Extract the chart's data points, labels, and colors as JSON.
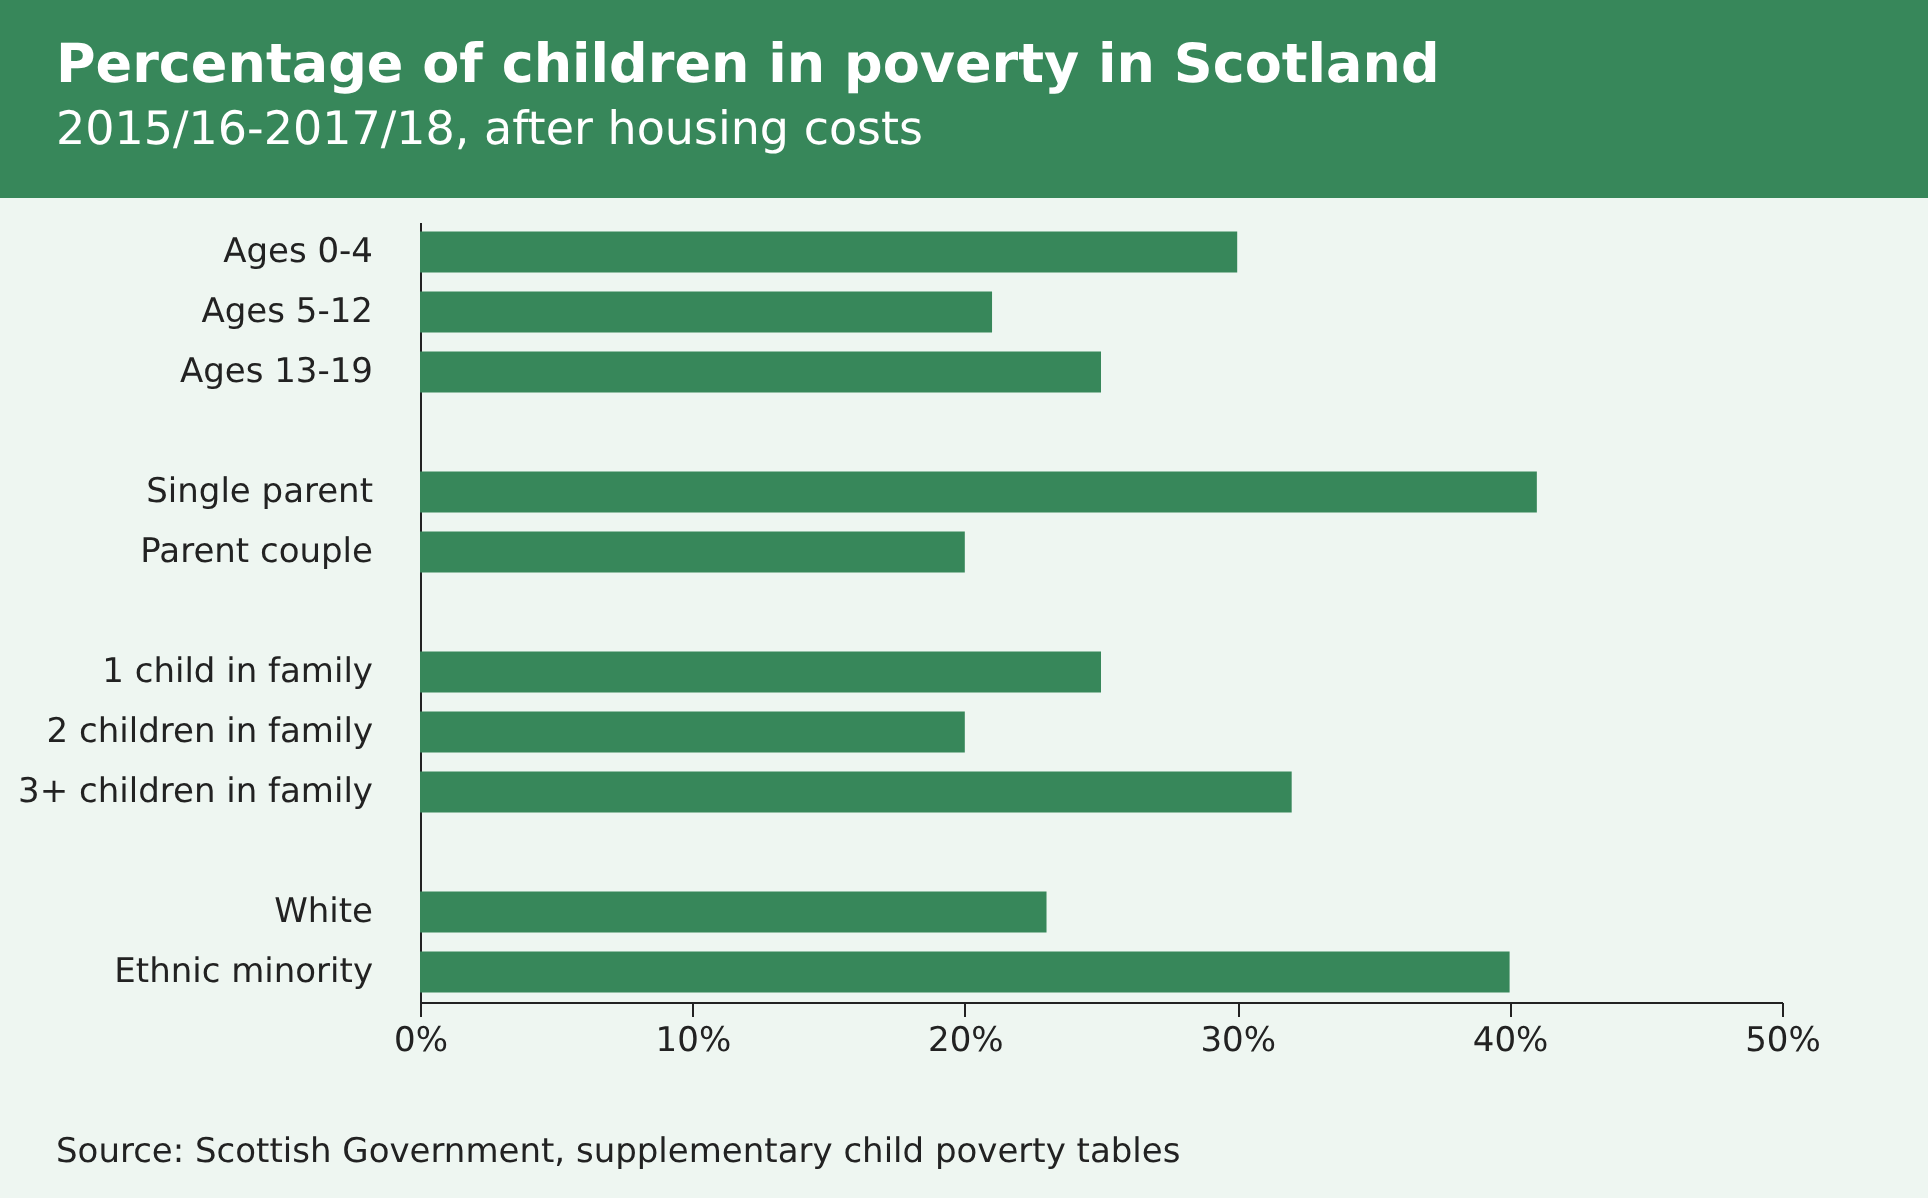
{
  "chart_data": {
    "type": "bar",
    "orientation": "horizontal",
    "title": "Percentage of children in poverty in Scotland",
    "subtitle": "2015/16-2017/18, after housing costs",
    "categories": [
      "Ages 0-4",
      "Ages 5-12",
      "Ages 13-19",
      null,
      "Single parent",
      "Parent couple",
      null,
      "1 child in family",
      "2 children in family",
      "3+ children in family",
      null,
      "White",
      "Ethnic minority"
    ],
    "values": [
      30,
      21,
      25,
      null,
      41,
      20,
      null,
      25,
      20,
      32,
      null,
      23,
      40
    ],
    "color": "#37875a",
    "xlim": [
      0,
      50
    ],
    "xticks": [
      {
        "value": 0,
        "label": "0%"
      },
      {
        "value": 10,
        "label": "10%"
      },
      {
        "value": 20,
        "label": "20%"
      },
      {
        "value": 30,
        "label": "30%"
      },
      {
        "value": 40,
        "label": "40%"
      },
      {
        "value": 50,
        "label": "50%"
      }
    ],
    "grid": false,
    "annotations": [
      "Source: Scottish Government, supplementary child poverty tables"
    ]
  }
}
